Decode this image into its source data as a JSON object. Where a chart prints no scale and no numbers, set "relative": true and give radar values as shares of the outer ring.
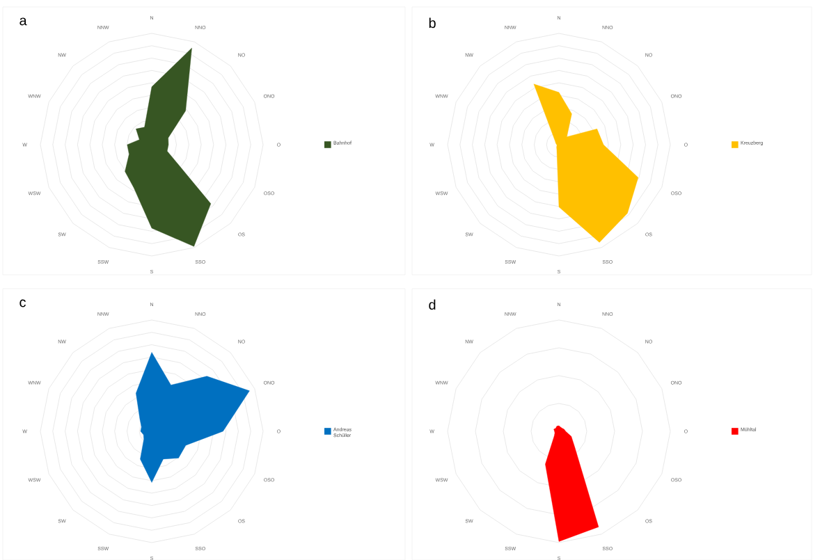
{
  "chart_data": [
    {
      "type": "radar",
      "title": "a",
      "categories": [
        "N",
        "NNO",
        "NO",
        "ONO",
        "O",
        "OSO",
        "OS",
        "SSO",
        "S",
        "SSW",
        "SW",
        "WSW",
        "W",
        "WNW",
        "NW",
        "NNW"
      ],
      "relative": true,
      "grid": true,
      "legend": "right",
      "series": [
        {
          "name": "Bahnhof",
          "color": "#375623",
          "values": [
            0.52,
            0.94,
            0.43,
            0.16,
            0.15,
            0.15,
            0.75,
            0.99,
            0.75,
            0.42,
            0.34,
            0.22,
            0.22,
            0.12,
            0.2,
            0.17
          ]
        }
      ]
    },
    {
      "type": "radar",
      "title": "b",
      "categories": [
        "N",
        "NNO",
        "NO",
        "ONO",
        "O",
        "OSO",
        "OS",
        "SSO",
        "S",
        "SSW",
        "SW",
        "WSW",
        "W",
        "WNW",
        "NW",
        "NNW"
      ],
      "relative": true,
      "grid": true,
      "legend": "right",
      "series": [
        {
          "name": "Kreuzberg",
          "color": "#ffc000",
          "values": [
            0.47,
            0.3,
            0.1,
            0.37,
            0.4,
            0.77,
            0.87,
            0.95,
            0.56,
            0.05,
            0.03,
            0.02,
            0.02,
            0.03,
            0.05,
            0.59
          ]
        }
      ]
    },
    {
      "type": "radar",
      "title": "c",
      "categories": [
        "N",
        "NNO",
        "NO",
        "ONO",
        "O",
        "OSO",
        "OS",
        "SSO",
        "S",
        "SSW",
        "SW",
        "WSW",
        "W",
        "WNW",
        "NW",
        "NNW"
      ],
      "relative": true,
      "grid": true,
      "legend": "right",
      "series": [
        {
          "name": "Andreas Schüller",
          "color": "#0070c0",
          "values": [
            0.71,
            0.45,
            0.7,
            0.95,
            0.64,
            0.33,
            0.34,
            0.27,
            0.46,
            0.27,
            0.1,
            0.08,
            0.1,
            0.1,
            0.15,
            0.37
          ]
        }
      ]
    },
    {
      "type": "radar",
      "title": "d",
      "categories": [
        "N",
        "NNO",
        "NO",
        "ONO",
        "O",
        "OSO",
        "OS",
        "SSO",
        "S",
        "SSW",
        "SW",
        "WSW",
        "W",
        "WNW",
        "NW",
        "NNW"
      ],
      "relative": true,
      "grid": true,
      "legend": "right",
      "series": [
        {
          "name": "Mühltal",
          "color": "#ff0000",
          "values": [
            0.05,
            0.04,
            0.04,
            0.05,
            0.06,
            0.12,
            0.2,
            0.93,
            0.99,
            0.32,
            0.06,
            0.04,
            0.04,
            0.05,
            0.04,
            0.05
          ]
        }
      ]
    }
  ]
}
